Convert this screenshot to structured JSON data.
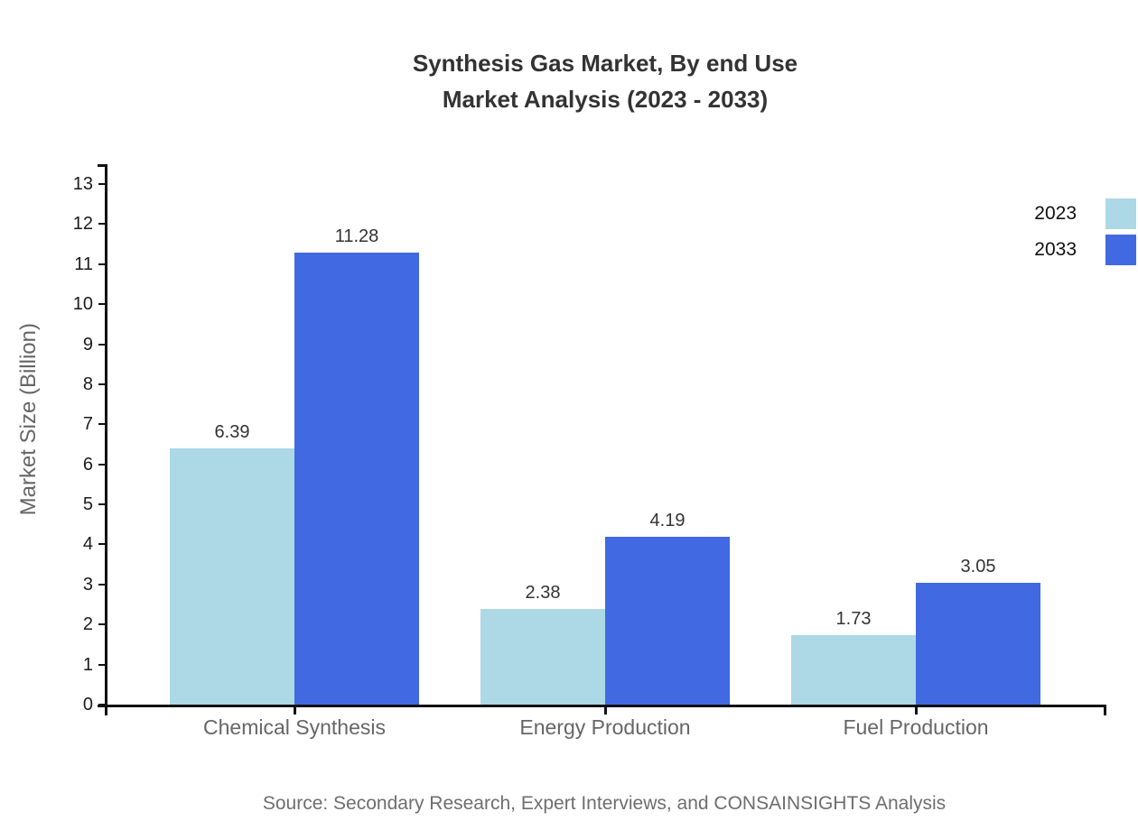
{
  "title": {
    "line1": "Synthesis Gas Market, By end Use",
    "line2": "Market Analysis (2023 - 2033)"
  },
  "source_note": "Source: Secondary Research, Expert Interviews, and CONSAINSIGHTS Analysis",
  "chart_data": {
    "type": "bar",
    "title": "Synthesis Gas Market, By end Use Market Analysis (2023 - 2033)",
    "categories": [
      "Chemical Synthesis",
      "Energy Production",
      "Fuel Production"
    ],
    "series": [
      {
        "name": "2023",
        "color": "#ADD8E6",
        "values": [
          6.39,
          2.38,
          1.73
        ],
        "value_labels": [
          "6.39",
          "2.38",
          "1.73"
        ]
      },
      {
        "name": "2033",
        "color": "#4169E1",
        "values": [
          11.28,
          4.19,
          3.05
        ],
        "value_labels": [
          "11.28",
          "4.19",
          "3.05"
        ]
      }
    ],
    "xlabel": "",
    "ylabel": "Market Size (Billion)",
    "ylim": [
      0,
      13
    ],
    "yticks": [
      0,
      1,
      2,
      3,
      4,
      5,
      6,
      7,
      8,
      9,
      10,
      11,
      12,
      13
    ],
    "grid": false,
    "legend_position": "top-right"
  }
}
